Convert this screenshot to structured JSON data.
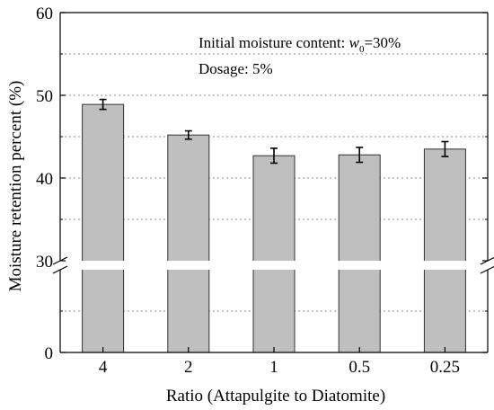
{
  "chart_data": {
    "type": "bar",
    "title": "",
    "xlabel": "Ratio (Attapulgite to Diatomite)",
    "ylabel": "Moisture retention percent (%)",
    "categories": [
      "4",
      "2",
      "1",
      "0.5",
      "0.25"
    ],
    "values": [
      48.9,
      45.2,
      42.7,
      42.8,
      43.5
    ],
    "errors": [
      0.6,
      0.5,
      0.9,
      0.9,
      0.9
    ],
    "axis_break": {
      "lower": [
        0,
        10
      ],
      "upper": [
        30,
        60
      ]
    },
    "y_ticks": [
      0,
      30,
      40,
      50,
      60
    ],
    "y_minor_ticks": [
      5,
      35,
      45,
      55
    ],
    "annotations": {
      "moisture_prefix": "Initial moisture content: ",
      "moisture_symbol": "w",
      "moisture_subscript": "0",
      "moisture_value": "=30%",
      "dosage": "Dosage: 5%"
    },
    "bar_color": "#bfbfbf",
    "grid": "dotted horizontal",
    "legend": "none"
  }
}
